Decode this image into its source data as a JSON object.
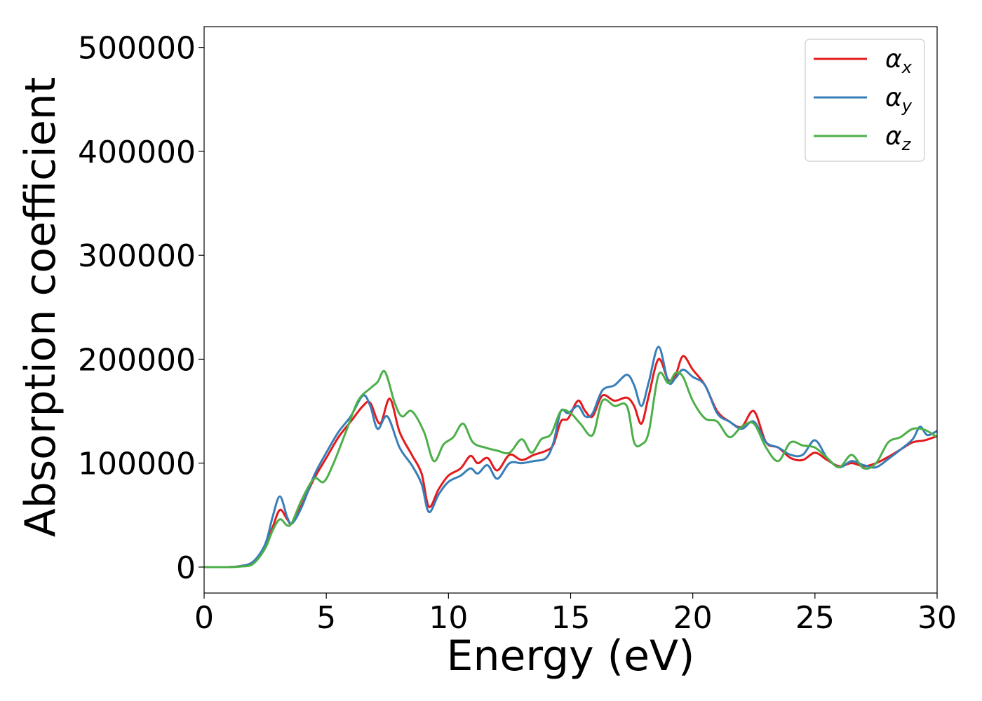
{
  "chart_data": {
    "type": "line",
    "title": "",
    "xlabel": "Energy (eV)",
    "ylabel": "Absorption coefficient",
    "xlim": [
      0,
      30
    ],
    "ylim": [
      -25000,
      520000
    ],
    "xticks": [
      0,
      5,
      10,
      15,
      20,
      25,
      30
    ],
    "yticks": [
      0,
      100000,
      200000,
      300000,
      400000,
      500000
    ],
    "xtick_labels": [
      "0",
      "5",
      "10",
      "15",
      "20",
      "25",
      "30"
    ],
    "ytick_labels": [
      "0",
      "100000",
      "200000",
      "300000",
      "400000",
      "500000"
    ],
    "grid": false,
    "legend_position": "top-right",
    "series": [
      {
        "name": "αx",
        "symbol": "α",
        "subscript": "x",
        "color": "#e41a1c",
        "points": [
          [
            0,
            0
          ],
          [
            1,
            0
          ],
          [
            1.5,
            1000
          ],
          [
            2,
            5000
          ],
          [
            2.5,
            20000
          ],
          [
            2.8,
            38000
          ],
          [
            3.1,
            55000
          ],
          [
            3.4,
            46000
          ],
          [
            3.6,
            42000
          ],
          [
            4,
            60000
          ],
          [
            4.5,
            85000
          ],
          [
            5,
            105000
          ],
          [
            5.5,
            125000
          ],
          [
            6,
            140000
          ],
          [
            6.5,
            155000
          ],
          [
            6.8,
            158000
          ],
          [
            7.2,
            138000
          ],
          [
            7.6,
            162000
          ],
          [
            8,
            130000
          ],
          [
            8.5,
            108000
          ],
          [
            8.9,
            90000
          ],
          [
            9.2,
            58000
          ],
          [
            9.6,
            75000
          ],
          [
            10,
            88000
          ],
          [
            10.5,
            95000
          ],
          [
            10.9,
            107000
          ],
          [
            11.2,
            100000
          ],
          [
            11.6,
            105000
          ],
          [
            12,
            93000
          ],
          [
            12.5,
            108000
          ],
          [
            13,
            103000
          ],
          [
            13.5,
            108000
          ],
          [
            14,
            112000
          ],
          [
            14.3,
            118000
          ],
          [
            14.6,
            140000
          ],
          [
            14.9,
            143000
          ],
          [
            15.3,
            160000
          ],
          [
            15.6,
            150000
          ],
          [
            15.9,
            145000
          ],
          [
            16.3,
            165000
          ],
          [
            16.8,
            160000
          ],
          [
            17.3,
            163000
          ],
          [
            17.6,
            155000
          ],
          [
            17.9,
            138000
          ],
          [
            18.2,
            165000
          ],
          [
            18.6,
            200000
          ],
          [
            19,
            180000
          ],
          [
            19.3,
            185000
          ],
          [
            19.6,
            203000
          ],
          [
            20,
            190000
          ],
          [
            20.5,
            175000
          ],
          [
            21,
            150000
          ],
          [
            21.5,
            140000
          ],
          [
            22,
            135000
          ],
          [
            22.5,
            150000
          ],
          [
            23,
            120000
          ],
          [
            23.5,
            115000
          ],
          [
            24,
            105000
          ],
          [
            24.5,
            103000
          ],
          [
            25,
            110000
          ],
          [
            25.5,
            103000
          ],
          [
            26,
            97000
          ],
          [
            26.5,
            100000
          ],
          [
            27,
            97000
          ],
          [
            27.5,
            100000
          ],
          [
            28,
            106000
          ],
          [
            28.5,
            113000
          ],
          [
            29,
            120000
          ],
          [
            29.5,
            122000
          ],
          [
            30,
            126000
          ]
        ]
      },
      {
        "name": "αy",
        "symbol": "α",
        "subscript": "y",
        "color": "#377eb8",
        "points": [
          [
            0,
            0
          ],
          [
            1,
            0
          ],
          [
            1.5,
            1000
          ],
          [
            2,
            5000
          ],
          [
            2.5,
            22000
          ],
          [
            2.8,
            48000
          ],
          [
            3.1,
            68000
          ],
          [
            3.4,
            48000
          ],
          [
            3.6,
            42000
          ],
          [
            4,
            58000
          ],
          [
            4.5,
            88000
          ],
          [
            5,
            110000
          ],
          [
            5.5,
            130000
          ],
          [
            6,
            145000
          ],
          [
            6.5,
            165000
          ],
          [
            6.8,
            155000
          ],
          [
            7.1,
            133000
          ],
          [
            7.5,
            145000
          ],
          [
            8,
            115000
          ],
          [
            8.5,
            98000
          ],
          [
            8.9,
            80000
          ],
          [
            9.2,
            53000
          ],
          [
            9.6,
            70000
          ],
          [
            10,
            82000
          ],
          [
            10.5,
            88000
          ],
          [
            10.9,
            95000
          ],
          [
            11.2,
            90000
          ],
          [
            11.6,
            98000
          ],
          [
            12,
            85000
          ],
          [
            12.5,
            100000
          ],
          [
            13,
            100000
          ],
          [
            13.5,
            102000
          ],
          [
            14,
            105000
          ],
          [
            14.3,
            120000
          ],
          [
            14.6,
            150000
          ],
          [
            14.9,
            148000
          ],
          [
            15.3,
            155000
          ],
          [
            15.6,
            145000
          ],
          [
            15.9,
            148000
          ],
          [
            16.3,
            170000
          ],
          [
            16.8,
            175000
          ],
          [
            17.3,
            185000
          ],
          [
            17.6,
            175000
          ],
          [
            17.9,
            155000
          ],
          [
            18.2,
            178000
          ],
          [
            18.6,
            212000
          ],
          [
            19,
            178000
          ],
          [
            19.3,
            182000
          ],
          [
            19.6,
            190000
          ],
          [
            20,
            183000
          ],
          [
            20.5,
            175000
          ],
          [
            21,
            148000
          ],
          [
            21.5,
            140000
          ],
          [
            22,
            133000
          ],
          [
            22.5,
            140000
          ],
          [
            23,
            120000
          ],
          [
            23.5,
            115000
          ],
          [
            24,
            108000
          ],
          [
            24.5,
            108000
          ],
          [
            25,
            122000
          ],
          [
            25.5,
            105000
          ],
          [
            26,
            96000
          ],
          [
            26.5,
            102000
          ],
          [
            27,
            98000
          ],
          [
            27.5,
            96000
          ],
          [
            28,
            104000
          ],
          [
            28.5,
            113000
          ],
          [
            29,
            123000
          ],
          [
            29.3,
            135000
          ],
          [
            29.6,
            127000
          ],
          [
            30,
            131000
          ]
        ]
      },
      {
        "name": "αz",
        "symbol": "α",
        "subscript": "z",
        "color": "#4daf4a",
        "points": [
          [
            0,
            0
          ],
          [
            1,
            0
          ],
          [
            1.5,
            500
          ],
          [
            2,
            3000
          ],
          [
            2.5,
            18000
          ],
          [
            2.8,
            35000
          ],
          [
            3.1,
            46000
          ],
          [
            3.4,
            40000
          ],
          [
            3.6,
            43000
          ],
          [
            4,
            65000
          ],
          [
            4.5,
            85000
          ],
          [
            4.9,
            82000
          ],
          [
            5.3,
            100000
          ],
          [
            5.8,
            130000
          ],
          [
            6.3,
            160000
          ],
          [
            6.8,
            172000
          ],
          [
            7.1,
            178000
          ],
          [
            7.4,
            188000
          ],
          [
            7.8,
            158000
          ],
          [
            8.1,
            145000
          ],
          [
            8.5,
            150000
          ],
          [
            9,
            130000
          ],
          [
            9.4,
            102000
          ],
          [
            9.8,
            118000
          ],
          [
            10.2,
            125000
          ],
          [
            10.6,
            138000
          ],
          [
            11,
            120000
          ],
          [
            11.5,
            115000
          ],
          [
            12,
            112000
          ],
          [
            12.5,
            110000
          ],
          [
            13,
            123000
          ],
          [
            13.4,
            110000
          ],
          [
            13.8,
            123000
          ],
          [
            14.2,
            128000
          ],
          [
            14.6,
            150000
          ],
          [
            15,
            148000
          ],
          [
            15.4,
            138000
          ],
          [
            15.9,
            127000
          ],
          [
            16.3,
            160000
          ],
          [
            16.8,
            155000
          ],
          [
            17.3,
            155000
          ],
          [
            17.6,
            120000
          ],
          [
            17.9,
            118000
          ],
          [
            18.2,
            130000
          ],
          [
            18.6,
            185000
          ],
          [
            19,
            177000
          ],
          [
            19.3,
            187000
          ],
          [
            19.6,
            183000
          ],
          [
            20,
            160000
          ],
          [
            20.5,
            143000
          ],
          [
            21,
            140000
          ],
          [
            21.5,
            125000
          ],
          [
            22,
            135000
          ],
          [
            22.5,
            138000
          ],
          [
            23,
            115000
          ],
          [
            23.5,
            102000
          ],
          [
            24,
            120000
          ],
          [
            24.5,
            117000
          ],
          [
            25,
            115000
          ],
          [
            25.5,
            105000
          ],
          [
            26,
            96000
          ],
          [
            26.5,
            108000
          ],
          [
            27,
            95000
          ],
          [
            27.5,
            100000
          ],
          [
            28,
            120000
          ],
          [
            28.5,
            125000
          ],
          [
            29,
            133000
          ],
          [
            29.5,
            132000
          ],
          [
            30,
            125000
          ]
        ]
      }
    ]
  }
}
